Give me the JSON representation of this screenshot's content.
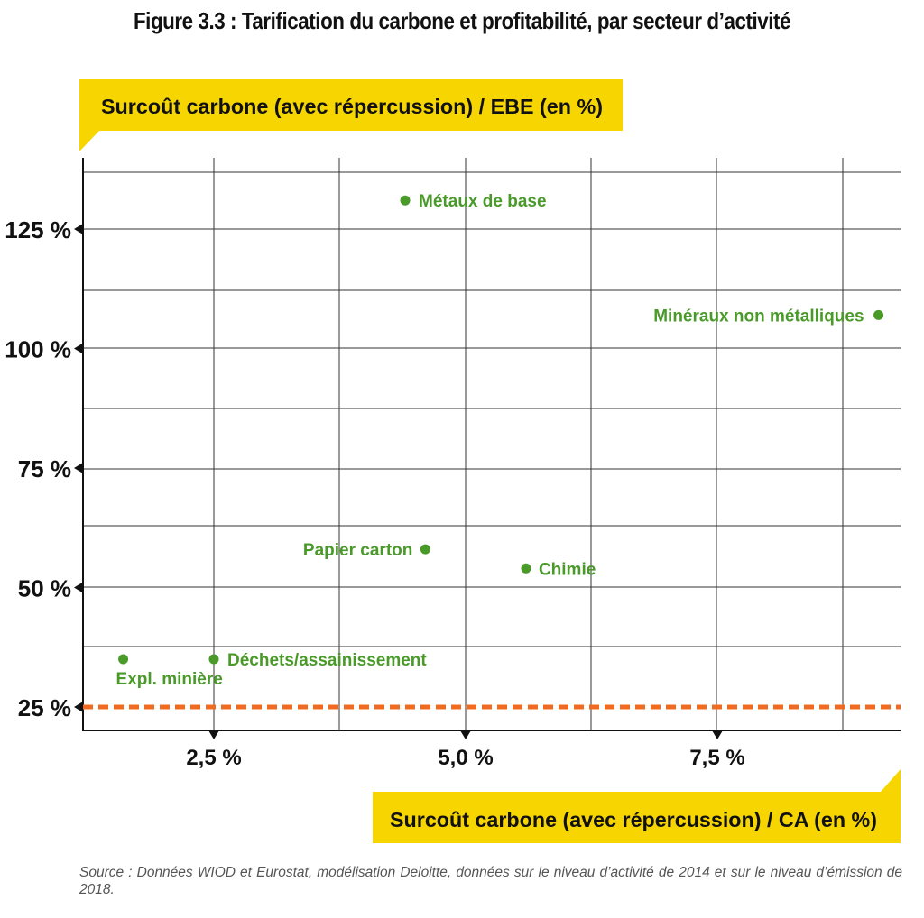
{
  "title": "Figure 3.3 : Tarification du carbone et profitabilité, par secteur d’activité",
  "source": "Source : Données WIOD et Eurostat, modélisation Deloitte, données sur le niveau d’activité de 2014 et sur le niveau d’émission de 2018.",
  "colors": {
    "accent": "#f7d500",
    "points": "#4a9a2a",
    "threshold": "#f06b22",
    "grid": "#333333"
  },
  "chart_data": {
    "type": "scatter",
    "title": "Figure 3.3 : Tarification du carbone et profitabilité, par secteur d’activité",
    "xlabel": "Surcoût carbone (avec répercussion) / CA (en %)",
    "ylabel": "Surcoût carbone (avec répercussion) / EBE (en %)",
    "xlim": [
      1.25,
      9.3
    ],
    "ylim": [
      20,
      138
    ],
    "xticks": [
      2.5,
      5.0,
      7.5
    ],
    "xtick_labels": [
      "2,5 %",
      "5,0 %",
      "7,5 %"
    ],
    "yticks": [
      25,
      50,
      75,
      100,
      125
    ],
    "ytick_labels": [
      "25 %",
      "50 %",
      "75 %",
      "100 %",
      "125 %"
    ],
    "grid": true,
    "threshold_line": {
      "y": 25,
      "style": "dashed"
    },
    "points": [
      {
        "label": "Métaux de base",
        "x": 4.4,
        "y": 131
      },
      {
        "label": "Minéraux non métalliques",
        "x": 9.1,
        "y": 107
      },
      {
        "label": "Papier carton",
        "x": 4.6,
        "y": 58
      },
      {
        "label": "Chimie",
        "x": 5.6,
        "y": 54
      },
      {
        "label": "Déchets/assainissement",
        "x": 2.5,
        "y": 35
      },
      {
        "label": "Expl. minière",
        "x": 1.6,
        "y": 35
      }
    ]
  }
}
